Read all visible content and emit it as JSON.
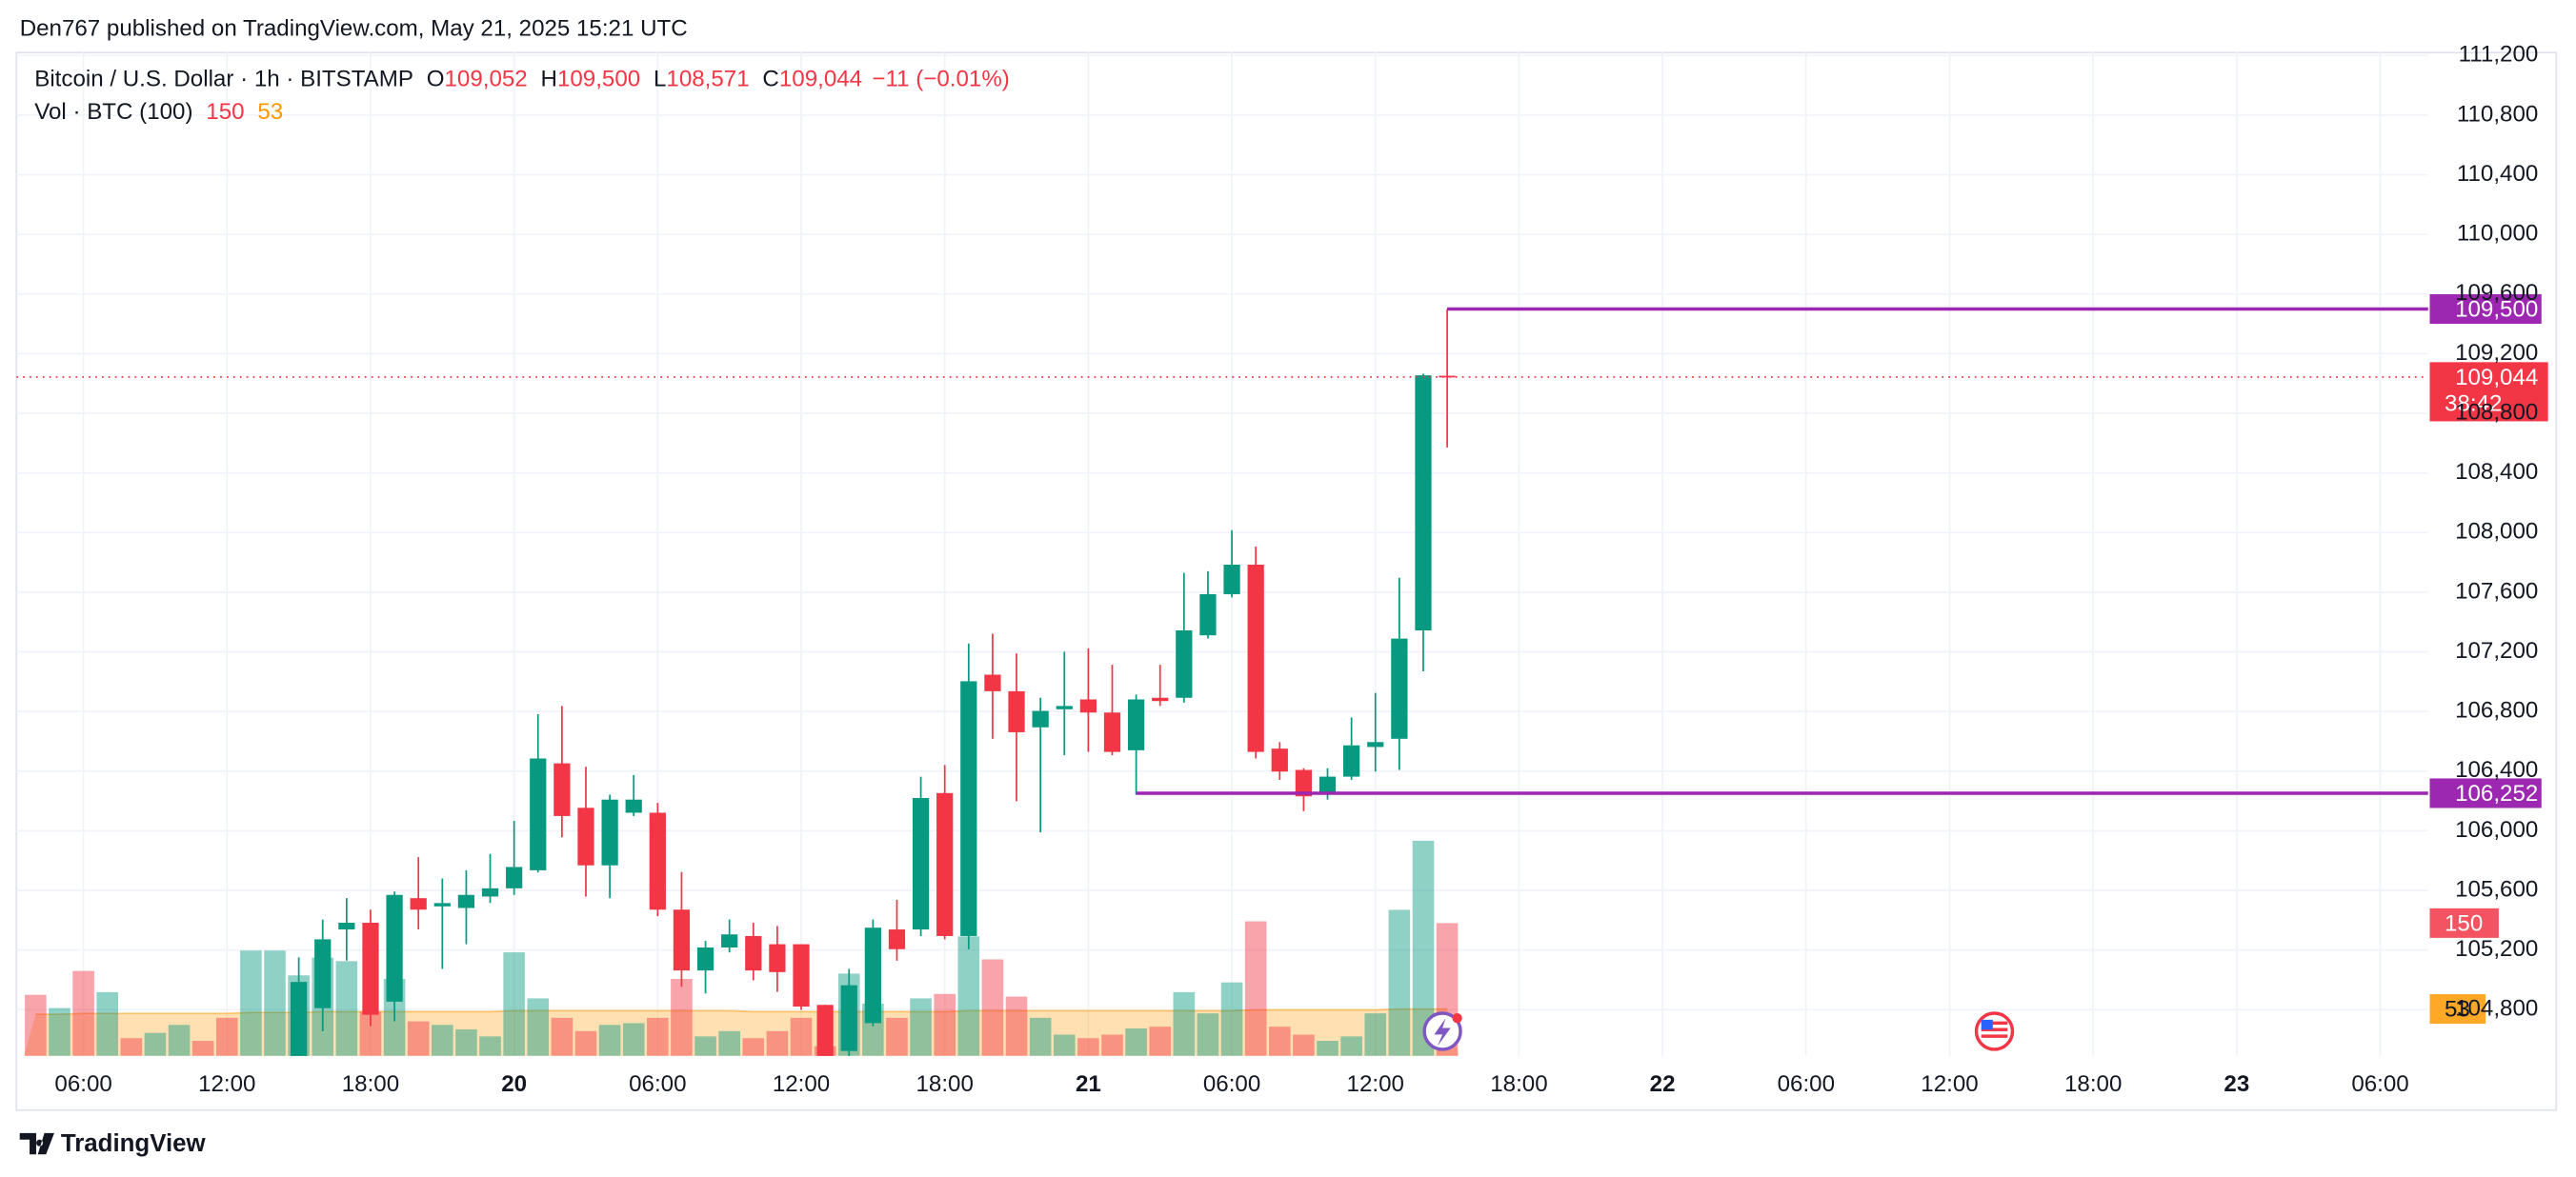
{
  "header": {
    "attribution": "Den767 published on TradingView.com, May 21, 2025 15:21 UTC"
  },
  "chart_data": {
    "type": "candlestick",
    "title": "Bitcoin / U.S. Dollar · 1h · BITSTAMP",
    "ohlc_legend": [
      {
        "key": "O",
        "text": "109,052"
      },
      {
        "key": "H",
        "text": "109,500"
      },
      {
        "key": "L",
        "text": "108,571"
      },
      {
        "key": "C",
        "text": "109,044"
      }
    ],
    "change": "−11 (−0.01%)",
    "x": [
      "19 04:00",
      "19 05:00",
      "19 06:00",
      "19 07:00",
      "19 08:00",
      "19 09:00",
      "19 10:00",
      "19 11:00",
      "19 12:00",
      "19 13:00",
      "19 14:00",
      "19 15:00",
      "19 16:00",
      "19 17:00",
      "19 18:00",
      "19 19:00",
      "19 20:00",
      "19 21:00",
      "19 22:00",
      "19 23:00",
      "20 00:00",
      "20 01:00",
      "20 02:00",
      "20 03:00",
      "20 04:00",
      "20 05:00",
      "20 06:00",
      "20 07:00",
      "20 08:00",
      "20 09:00",
      "20 10:00",
      "20 11:00",
      "20 12:00",
      "20 13:00",
      "20 14:00",
      "20 15:00",
      "20 16:00",
      "20 17:00",
      "20 18:00",
      "20 19:00",
      "20 20:00",
      "20 21:00",
      "20 22:00",
      "20 23:00",
      "21 00:00",
      "21 01:00",
      "21 02:00",
      "21 03:00",
      "21 04:00",
      "21 05:00",
      "21 06:00",
      "21 07:00",
      "21 08:00",
      "21 09:00",
      "21 10:00",
      "21 11:00",
      "21 12:00",
      "21 13:00",
      "21 14:00",
      "21 15:00"
    ],
    "open": [
      null,
      null,
      null,
      null,
      null,
      null,
      null,
      null,
      null,
      null,
      null,
      104420,
      104810,
      105338,
      105383,
      104854,
      105548,
      105493,
      105482,
      105559,
      105614,
      105735,
      106452,
      106154,
      105768,
      106121,
      106121,
      105471,
      105063,
      105217,
      105294,
      105239,
      105239,
      104832,
      104523,
      104710,
      105338,
      105338,
      106253,
      105294,
      107047,
      106936,
      106694,
      106815,
      106881,
      106793,
      106540,
      106892,
      106892,
      107311,
      107587,
      107785,
      106551,
      106408,
      106242,
      106363,
      106562,
      106617,
      107344,
      109052
    ],
    "high": [
      null,
      null,
      null,
      null,
      null,
      null,
      null,
      null,
      null,
      null,
      null,
      105151,
      105405,
      105548,
      105471,
      105592,
      105823,
      105680,
      105735,
      105845,
      106066,
      106782,
      106837,
      106430,
      106242,
      106374,
      106187,
      105724,
      105261,
      105405,
      105383,
      105361,
      105239,
      104832,
      105074,
      105405,
      105537,
      106363,
      106441,
      107256,
      107322,
      107190,
      106892,
      107201,
      107223,
      107113,
      106914,
      107113,
      107730,
      107741,
      108016,
      107906,
      106595,
      106419,
      106419,
      106760,
      106925,
      107697,
      109066,
      109500
    ],
    "low": [
      null,
      null,
      null,
      null,
      null,
      null,
      null,
      null,
      null,
      null,
      null,
      104300,
      104655,
      105129,
      104689,
      104721,
      105338,
      105074,
      105239,
      105515,
      105570,
      105720,
      105956,
      105559,
      105548,
      106099,
      105427,
      104953,
      104909,
      105184,
      104997,
      104920,
      104799,
      104440,
      104450,
      104689,
      105129,
      105294,
      105272,
      105206,
      106617,
      106198,
      105989,
      106507,
      106529,
      106507,
      106242,
      106837,
      106859,
      107289,
      107565,
      106485,
      106341,
      106132,
      106209,
      106341,
      106397,
      106408,
      107069,
      108571
    ],
    "close": [
      null,
      null,
      null,
      null,
      null,
      null,
      null,
      null,
      null,
      null,
      null,
      104986,
      105272,
      105383,
      104766,
      105570,
      105471,
      105515,
      105570,
      105614,
      105757,
      106485,
      106099,
      105768,
      106209,
      106209,
      105471,
      105063,
      105217,
      105305,
      105063,
      105052,
      104821,
      104480,
      104964,
      105350,
      105206,
      106220,
      105294,
      107003,
      106936,
      106661,
      106804,
      106837,
      106793,
      106529,
      106881,
      106870,
      107344,
      107587,
      107785,
      106529,
      106397,
      106231,
      106363,
      106573,
      106595,
      107289,
      109055,
      109044
    ],
    "up_color": "#089981",
    "down_color": "#f23645",
    "volume": {
      "name": "Vol · BTC (100)",
      "values": [
        69,
        54,
        96,
        72,
        20,
        26,
        35,
        17,
        43,
        119,
        119,
        91,
        111,
        107,
        50,
        87,
        39,
        35,
        30,
        22,
        117,
        65,
        43,
        28,
        35,
        37,
        43,
        87,
        22,
        28,
        20,
        28,
        43,
        11,
        93,
        59,
        43,
        65,
        70,
        135,
        109,
        67,
        43,
        24,
        20,
        24,
        31,
        33,
        72,
        48,
        83,
        152,
        33,
        24,
        17,
        22,
        48,
        165,
        243,
        150
      ],
      "colors": [
        "#f23645",
        "#089981",
        "#f23645",
        "#089981",
        "#f23645",
        "#089981",
        "#089981",
        "#f23645",
        "#f23645",
        "#089981",
        "#089981",
        "#089981",
        "#089981",
        "#089981",
        "#f23645",
        "#089981",
        "#f23645",
        "#089981",
        "#089981",
        "#089981",
        "#089981",
        "#089981",
        "#f23645",
        "#f23645",
        "#089981",
        "#089981",
        "#f23645",
        "#f23645",
        "#089981",
        "#089981",
        "#f23645",
        "#f23645",
        "#f23645",
        "#f23645",
        "#089981",
        "#089981",
        "#f23645",
        "#089981",
        "#f23645",
        "#089981",
        "#f23645",
        "#f23645",
        "#089981",
        "#089981",
        "#f23645",
        "#f23645",
        "#089981",
        "#f23645",
        "#089981",
        "#089981",
        "#089981",
        "#f23645",
        "#f23645",
        "#f23645",
        "#089981",
        "#089981",
        "#089981",
        "#089981",
        "#089981",
        "#f23645"
      ]
    },
    "volume_ma": {
      "color": "#ff9800",
      "values": [
        47,
        47,
        48,
        48,
        48,
        48,
        48,
        48,
        48,
        49,
        49,
        49,
        50,
        50,
        50,
        50,
        50,
        50,
        50,
        50,
        51,
        51,
        51,
        51,
        51,
        51,
        51,
        51,
        51,
        51,
        50,
        50,
        50,
        50,
        50,
        50,
        50,
        50,
        50,
        51,
        51,
        51,
        51,
        51,
        51,
        51,
        51,
        51,
        51,
        51,
        51,
        52,
        52,
        52,
        52,
        52,
        52,
        53,
        53,
        53
      ]
    },
    "last_price": {
      "value": 109044,
      "label": "109,044",
      "countdown": "38:42"
    },
    "hlines": [
      {
        "value": 109500,
        "label": "109,500",
        "start": "21 15:00"
      },
      {
        "value": 106252,
        "label": "106,252",
        "start": "21 02:00"
      }
    ],
    "hline_color": "#9c27b0",
    "xlim": [
      "19 03:12",
      "23 08:00"
    ],
    "xticks": [
      {
        "value": "19 06:00",
        "label": "06:00"
      },
      {
        "value": "19 12:00",
        "label": "12:00"
      },
      {
        "value": "19 18:00",
        "label": "18:00"
      },
      {
        "value": "20 00:00",
        "label": "20"
      },
      {
        "value": "20 06:00",
        "label": "06:00"
      },
      {
        "value": "20 12:00",
        "label": "12:00"
      },
      {
        "value": "20 18:00",
        "label": "18:00"
      },
      {
        "value": "21 00:00",
        "label": "21"
      },
      {
        "value": "21 06:00",
        "label": "06:00"
      },
      {
        "value": "21 12:00",
        "label": "12:00"
      },
      {
        "value": "21 18:00",
        "label": "18:00"
      },
      {
        "value": "22 00:00",
        "label": "22"
      },
      {
        "value": "22 06:00",
        "label": "06:00"
      },
      {
        "value": "22 12:00",
        "label": "12:00"
      },
      {
        "value": "22 18:00",
        "label": "18:00"
      },
      {
        "value": "23 00:00",
        "label": "23"
      },
      {
        "value": "23 06:00",
        "label": "06:00"
      }
    ],
    "ylim": [
      104490,
      111220
    ],
    "yticks": [
      {
        "value": 104800,
        "label": "104,800"
      },
      {
        "value": 105200,
        "label": "105,200"
      },
      {
        "value": 105600,
        "label": "105,600"
      },
      {
        "value": 106000,
        "label": "106,000"
      },
      {
        "value": 106400,
        "label": "106,400"
      },
      {
        "value": 106800,
        "label": "106,800"
      },
      {
        "value": 107200,
        "label": "107,200"
      },
      {
        "value": 107600,
        "label": "107,600"
      },
      {
        "value": 108000,
        "label": "108,000"
      },
      {
        "value": 108400,
        "label": "108,400"
      },
      {
        "value": 108800,
        "label": "108,800"
      },
      {
        "value": 109200,
        "label": "109,200"
      },
      {
        "value": 109600,
        "label": "109,600"
      },
      {
        "value": 110000,
        "label": "110,000"
      },
      {
        "value": 110400,
        "label": "110,400"
      },
      {
        "value": 110800,
        "label": "110,800"
      },
      {
        "value": 111200,
        "label": "111,200"
      }
    ],
    "grid": true
  },
  "footer": {
    "brand": "TradingView"
  }
}
